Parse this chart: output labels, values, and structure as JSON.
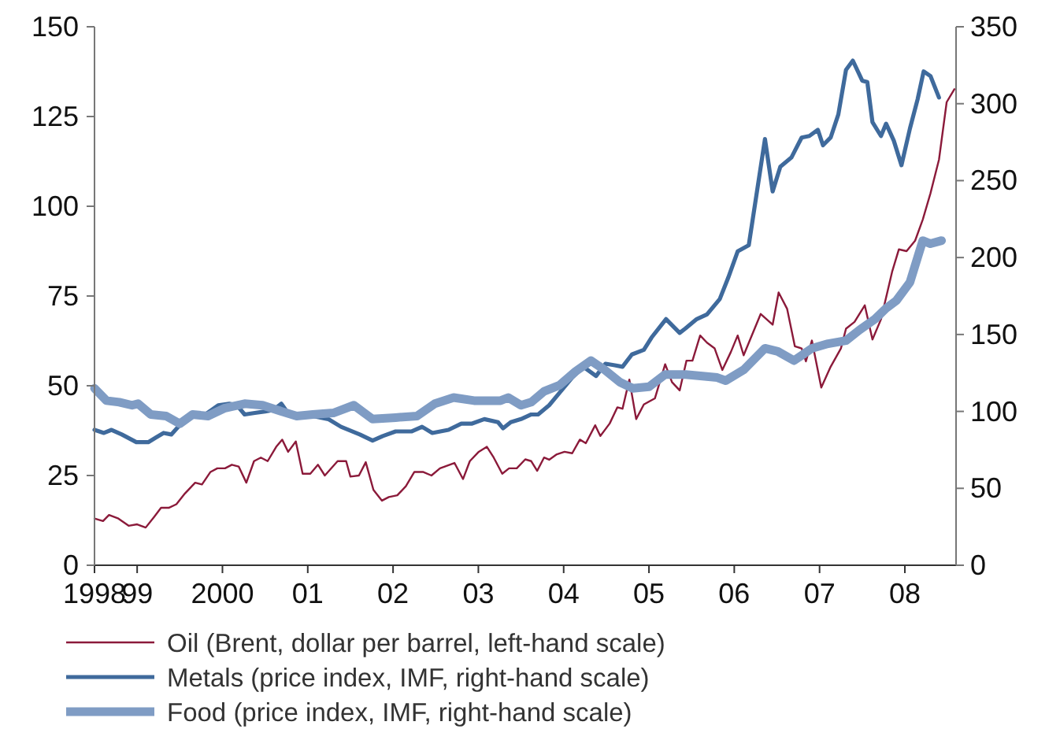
{
  "chart_data": {
    "type": "line",
    "xlim": [
      1998.5,
      2008.6
    ],
    "xticks": [
      {
        "value": 1998.5,
        "label": "1998"
      },
      {
        "value": 1999,
        "label": "99"
      },
      {
        "value": 2000,
        "label": "2000"
      },
      {
        "value": 2001,
        "label": "01"
      },
      {
        "value": 2002,
        "label": "02"
      },
      {
        "value": 2003,
        "label": "03"
      },
      {
        "value": 2004,
        "label": "04"
      },
      {
        "value": 2005,
        "label": "05"
      },
      {
        "value": 2006,
        "label": "06"
      },
      {
        "value": 2007,
        "label": "07"
      },
      {
        "value": 2008,
        "label": "08"
      }
    ],
    "ylim": [
      0,
      150
    ],
    "yticks": [
      0,
      25,
      50,
      75,
      100,
      125,
      150
    ],
    "y2lim": [
      0,
      350
    ],
    "y2ticks": [
      0,
      50,
      100,
      150,
      200,
      250,
      300,
      350
    ],
    "grid": false,
    "legend": "bottom",
    "marker": "none",
    "line_style": "solid",
    "series": [
      {
        "name": "Oil (Brent, dollar per barrel, left-hand scale)",
        "color": "#8b1a3a",
        "x": [
          1998.5,
          1998.6,
          1998.67,
          1998.78,
          1998.9,
          1999.0,
          1999.1,
          1999.2,
          1999.28,
          1999.37,
          1999.46,
          1999.56,
          1999.68,
          1999.76,
          1999.86,
          1999.94,
          2000.03,
          2000.11,
          2000.19,
          2000.28,
          2000.37,
          2000.45,
          2000.53,
          2000.63,
          2000.7,
          2000.77,
          2000.86,
          2000.94,
          2001.03,
          2001.12,
          2001.2,
          2001.35,
          2001.45,
          2001.5,
          2001.6,
          2001.68,
          2001.77,
          2001.87,
          2001.95,
          2002.05,
          2002.15,
          2002.25,
          2002.35,
          2002.45,
          2002.55,
          2002.72,
          2002.82,
          2002.9,
          2003.0,
          2003.1,
          2003.18,
          2003.28,
          2003.36,
          2003.45,
          2003.55,
          2003.62,
          2003.69,
          2003.77,
          2003.83,
          2003.92,
          2004.01,
          2004.1,
          2004.19,
          2004.26,
          2004.37,
          2004.43,
          2004.54,
          2004.63,
          2004.69,
          2004.77,
          2004.85,
          2004.94,
          2005.07,
          2005.19,
          2005.27,
          2005.36,
          2005.44,
          2005.51,
          2005.6,
          2005.68,
          2005.77,
          2005.86,
          2005.96,
          2006.04,
          2006.11,
          2006.31,
          2006.45,
          2006.52,
          2006.62,
          2006.71,
          2006.79,
          2006.84,
          2006.91,
          2007.02,
          2007.13,
          2007.25,
          2007.31,
          2007.41,
          2007.53,
          2007.62,
          2007.72,
          2007.85,
          2007.93,
          2008.02,
          2008.12,
          2008.21,
          2008.3,
          2008.4,
          2008.49,
          2008.58
        ],
        "values": [
          13,
          12.3,
          14,
          13,
          11,
          11.4,
          10.5,
          13.5,
          16,
          16,
          17,
          20,
          23,
          22.5,
          26,
          27,
          27,
          28,
          27.5,
          23,
          29,
          30,
          29,
          33,
          35,
          31.6,
          34.5,
          25.5,
          25.5,
          28,
          25,
          29,
          29,
          24.7,
          25,
          28.7,
          21,
          18,
          19,
          19.5,
          22,
          26,
          26,
          25,
          27,
          28.5,
          24,
          29,
          31.5,
          33,
          30,
          25.5,
          27,
          27,
          29.5,
          29,
          26.3,
          30,
          29.4,
          30.9,
          31.6,
          31.2,
          35,
          34,
          39,
          36,
          39.5,
          44,
          43.6,
          51.7,
          40.7,
          44.8,
          46.5,
          56,
          51,
          48.7,
          57,
          57,
          64,
          62,
          60.4,
          54.4,
          59.4,
          64,
          58.5,
          70,
          67,
          76,
          71.4,
          61,
          60.4,
          56.8,
          62.6,
          49.5,
          55.3,
          60.4,
          65.9,
          67.8,
          72.4,
          62.9,
          68.5,
          81.7,
          88,
          87.5,
          90.4,
          96.3,
          103.6,
          113,
          129,
          132.6
        ]
      },
      {
        "name": "Metals (price index, IMF, right-hand scale)",
        "color": "#3f6a9c",
        "axis": "y2",
        "x": [
          1998.5,
          1998.61,
          1998.7,
          1998.82,
          1998.99,
          1999.13,
          1999.22,
          1999.31,
          1999.4,
          1999.53,
          1999.65,
          1999.8,
          1999.95,
          2000.08,
          2000.17,
          2000.26,
          2000.38,
          2000.5,
          2000.6,
          2000.69,
          2000.78,
          2000.9,
          2001.06,
          2001.24,
          2001.39,
          2001.61,
          2001.76,
          2001.88,
          2002.03,
          2002.22,
          2002.34,
          2002.46,
          2002.65,
          2002.8,
          2002.92,
          2003.07,
          2003.23,
          2003.29,
          2003.38,
          2003.5,
          2003.62,
          2003.7,
          2003.83,
          2003.95,
          2004.1,
          2004.23,
          2004.38,
          2004.49,
          2004.6,
          2004.69,
          2004.8,
          2004.94,
          2005.03,
          2005.2,
          2005.36,
          2005.43,
          2005.56,
          2005.68,
          2005.83,
          2005.93,
          2006.04,
          2006.17,
          2006.36,
          2006.45,
          2006.54,
          2006.67,
          2006.79,
          2006.88,
          2006.98,
          2007.04,
          2007.13,
          2007.22,
          2007.31,
          2007.39,
          2007.5,
          2007.56,
          2007.62,
          2007.72,
          2007.78,
          2007.87,
          2007.96,
          2008.06,
          2008.15,
          2008.22,
          2008.3,
          2008.4
        ],
        "values": [
          88,
          86,
          88,
          85,
          80,
          80,
          83,
          86,
          85,
          93,
          97,
          98,
          104,
          105,
          104,
          98,
          99,
          100,
          101,
          105,
          98,
          98,
          97,
          95,
          90,
          85,
          81,
          84,
          87,
          87,
          90,
          86,
          88,
          92,
          92,
          95,
          93,
          89,
          93,
          95,
          98,
          98,
          104,
          112,
          122,
          129,
          123,
          131,
          130,
          129,
          137,
          140,
          148,
          160,
          151,
          154,
          160,
          163,
          173,
          187,
          204,
          208,
          277,
          243,
          259,
          265,
          278,
          279,
          283,
          273,
          278,
          293,
          322,
          328,
          315,
          314,
          288,
          279,
          287,
          276,
          260,
          284,
          303,
          321,
          318,
          304
        ]
      },
      {
        "name": "Food (price index, IMF, right-hand scale)",
        "color": "#7f9cc4",
        "axis": "y2",
        "x": [
          1998.5,
          1998.64,
          1998.79,
          1998.94,
          1999.01,
          1999.16,
          1999.34,
          1999.5,
          1999.65,
          1999.83,
          2000.02,
          2000.26,
          2000.47,
          2000.69,
          2000.87,
          2001.06,
          2001.3,
          2001.54,
          2001.76,
          2002.03,
          2002.28,
          2002.49,
          2002.71,
          2002.95,
          2003.26,
          2003.35,
          2003.5,
          2003.62,
          2003.77,
          2003.95,
          2004.14,
          2004.32,
          2004.48,
          2004.66,
          2004.81,
          2005.0,
          2005.19,
          2005.43,
          2005.8,
          2005.9,
          2006.11,
          2006.36,
          2006.51,
          2006.7,
          2006.91,
          2007.1,
          2007.31,
          2007.47,
          2007.65,
          2007.78,
          2007.9,
          2008.06,
          2008.21,
          2008.3,
          2008.43
        ],
        "values": [
          115,
          107,
          106,
          104,
          105,
          98,
          97,
          92,
          98,
          97,
          102,
          105,
          104,
          100,
          97,
          98,
          99,
          104,
          95,
          96,
          97,
          105,
          109,
          107,
          107,
          109,
          104,
          106,
          113,
          117,
          126,
          133,
          127,
          119,
          115,
          116,
          124,
          124,
          122,
          120,
          127,
          141,
          139,
          133,
          141,
          144,
          146,
          153,
          160,
          167,
          172,
          184,
          211,
          209,
          211
        ]
      }
    ]
  }
}
